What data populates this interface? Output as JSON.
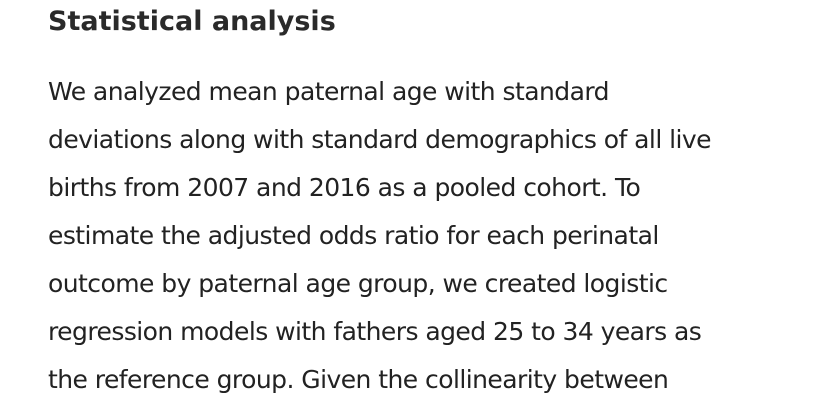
{
  "section": {
    "heading": "Statistical analysis",
    "lines": [
      "We analyzed mean paternal age with standard",
      "deviations along with standard demographics of all live",
      "births from 2007 and 2016 as a pooled cohort. To",
      "estimate the adjusted odds ratio for each perinatal",
      "outcome by paternal age group, we created logistic",
      "regression models with fathers aged 25 to 34 years as",
      "the reference group. Given the collinearity between"
    ]
  }
}
